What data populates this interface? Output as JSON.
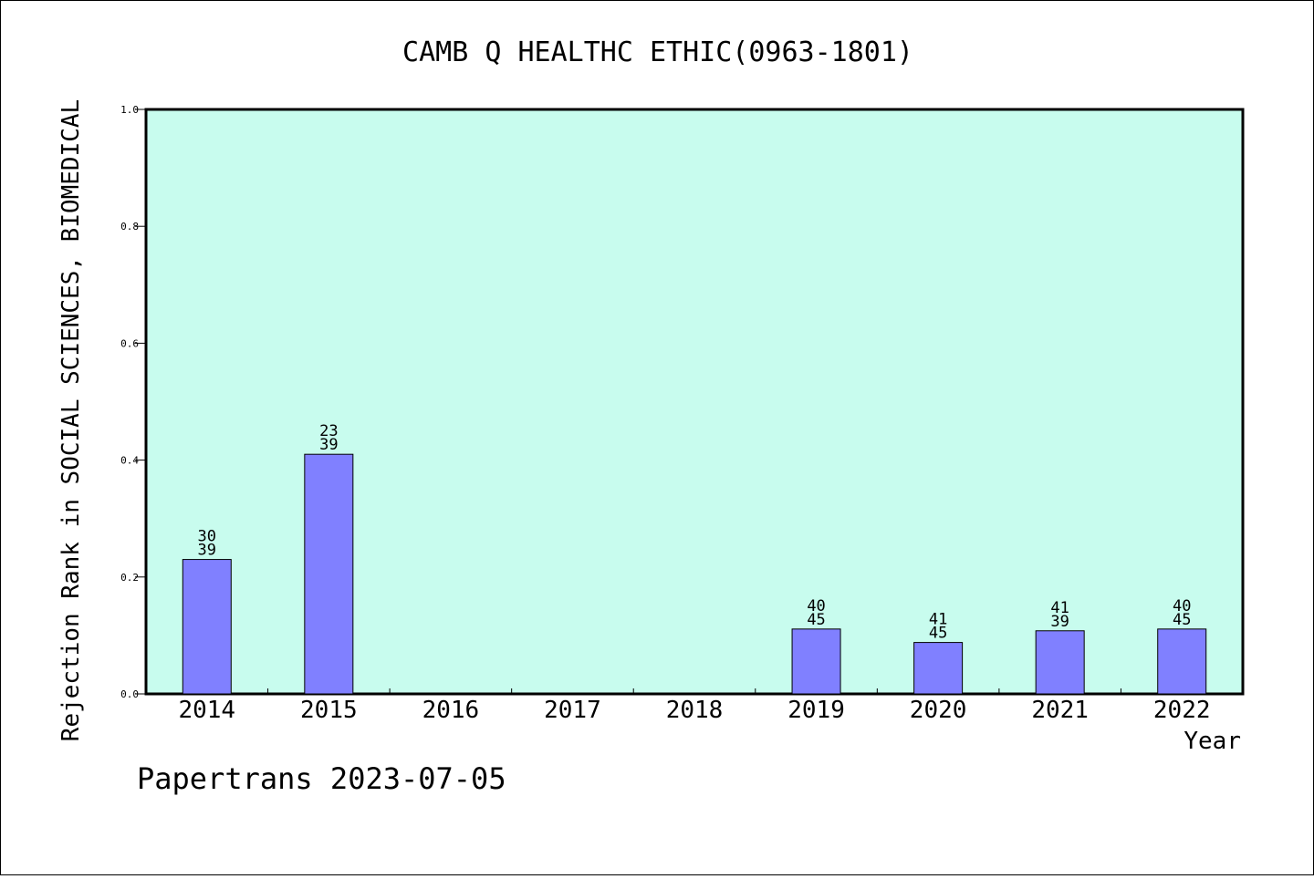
{
  "chart_data": {
    "type": "bar",
    "title": "CAMB Q HEALTHC ETHIC(0963-1801)",
    "xlabel": "Year",
    "ylabel": "Rejection Rank in SOCIAL SCIENCES, BIOMEDICAL",
    "ylim": [
      0,
      1.0
    ],
    "yticks": [
      "0.0",
      "0.2",
      "0.4",
      "0.6",
      "0.8",
      "1.0"
    ],
    "categories": [
      "2014",
      "2015",
      "2016",
      "2017",
      "2018",
      "2019",
      "2020",
      "2021",
      "2022"
    ],
    "values": [
      0.23,
      0.41,
      null,
      null,
      null,
      0.111,
      0.088,
      0.108,
      0.111
    ],
    "labels_top": [
      "30",
      "23",
      "",
      "",
      "",
      "40",
      "41",
      "41",
      "40"
    ],
    "labels_bottom": [
      "39",
      "39",
      "",
      "",
      "",
      "45",
      "45",
      "39",
      "45"
    ],
    "grid": false,
    "colors": {
      "plot_bg": "#c8fcee",
      "bar": "#8080ff",
      "axis": "#000000"
    }
  },
  "footer": "Papertrans 2023-07-05"
}
